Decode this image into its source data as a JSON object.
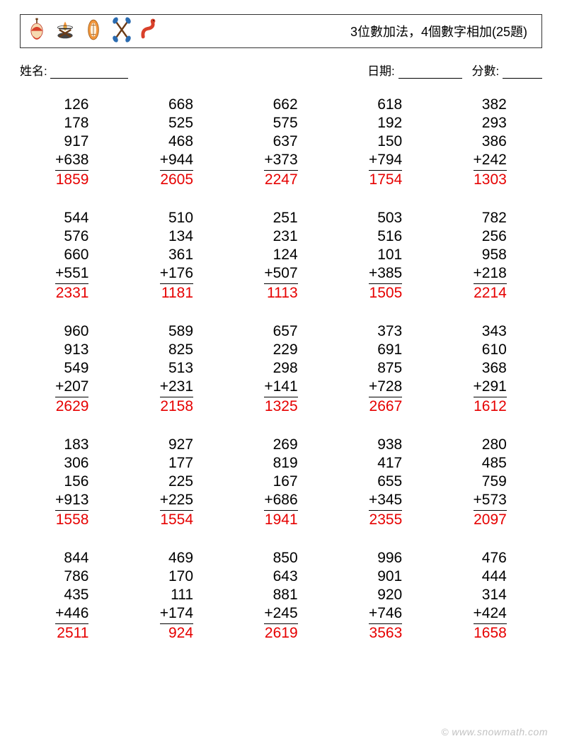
{
  "title": "3位數加法，4個數字相加(25題)",
  "labels": {
    "name": "姓名:",
    "date": "日期:",
    "score": "分數:"
  },
  "answer_color": "#e60000",
  "plus_sign": "+",
  "watermark": "© www.snowmath.com",
  "problems": [
    {
      "n": [
        "126",
        "178",
        "917",
        "638"
      ],
      "a": "1859"
    },
    {
      "n": [
        "668",
        "525",
        "468",
        "944"
      ],
      "a": "2605"
    },
    {
      "n": [
        "662",
        "575",
        "637",
        "373"
      ],
      "a": "2247"
    },
    {
      "n": [
        "618",
        "192",
        "150",
        "794"
      ],
      "a": "1754"
    },
    {
      "n": [
        "382",
        "293",
        "386",
        "242"
      ],
      "a": "1303"
    },
    {
      "n": [
        "544",
        "576",
        "660",
        "551"
      ],
      "a": "2331"
    },
    {
      "n": [
        "510",
        "134",
        "361",
        "176"
      ],
      "a": "1181"
    },
    {
      "n": [
        "251",
        "231",
        "124",
        "507"
      ],
      "a": "1113"
    },
    {
      "n": [
        "503",
        "516",
        "101",
        "385"
      ],
      "a": "1505"
    },
    {
      "n": [
        "782",
        "256",
        "958",
        "218"
      ],
      "a": "2214"
    },
    {
      "n": [
        "960",
        "913",
        "549",
        "207"
      ],
      "a": "2629"
    },
    {
      "n": [
        "589",
        "825",
        "513",
        "231"
      ],
      "a": "2158"
    },
    {
      "n": [
        "657",
        "229",
        "298",
        "141"
      ],
      "a": "1325"
    },
    {
      "n": [
        "373",
        "691",
        "875",
        "728"
      ],
      "a": "2667"
    },
    {
      "n": [
        "343",
        "610",
        "368",
        "291"
      ],
      "a": "1612"
    },
    {
      "n": [
        "183",
        "306",
        "156",
        "913"
      ],
      "a": "1558"
    },
    {
      "n": [
        "927",
        "177",
        "225",
        "225"
      ],
      "a": "1554"
    },
    {
      "n": [
        "269",
        "819",
        "167",
        "686"
      ],
      "a": "1941"
    },
    {
      "n": [
        "938",
        "417",
        "655",
        "345"
      ],
      "a": "2355"
    },
    {
      "n": [
        "280",
        "485",
        "759",
        "573"
      ],
      "a": "2097"
    },
    {
      "n": [
        "844",
        "786",
        "435",
        "446"
      ],
      "a": "2511"
    },
    {
      "n": [
        "469",
        "170",
        "111",
        "174"
      ],
      "a": "924"
    },
    {
      "n": [
        "850",
        "643",
        "881",
        "245"
      ],
      "a": "2619"
    },
    {
      "n": [
        "996",
        "901",
        "920",
        "746"
      ],
      "a": "3563"
    },
    {
      "n": [
        "476",
        "444",
        "314",
        "424"
      ],
      "a": "1658"
    }
  ],
  "icons": [
    "bobber",
    "campfire",
    "canoe",
    "paddles",
    "worm"
  ]
}
